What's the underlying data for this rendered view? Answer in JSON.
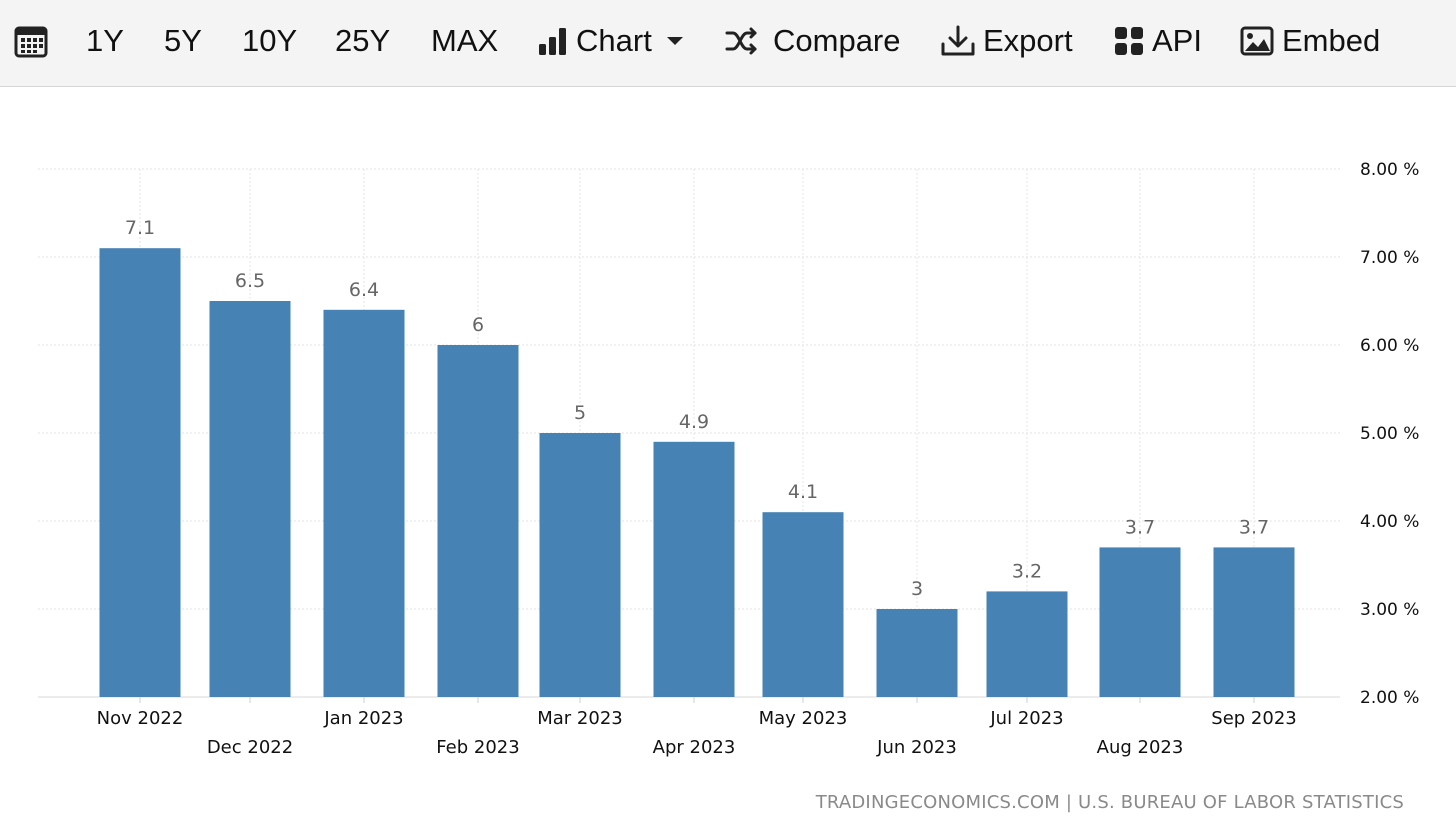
{
  "toolbar": {
    "calendar_icon": "calendar-icon",
    "ranges": [
      "1Y",
      "5Y",
      "10Y",
      "25Y",
      "MAX"
    ],
    "chart_label": "Chart",
    "compare_label": "Compare",
    "export_label": "Export",
    "api_label": "API",
    "embed_label": "Embed"
  },
  "chart_data": {
    "type": "bar",
    "categories": [
      "Nov 2022",
      "Dec 2022",
      "Jan 2023",
      "Feb 2023",
      "Mar 2023",
      "Apr 2023",
      "May 2023",
      "Jun 2023",
      "Jul 2023",
      "Aug 2023",
      "Sep 2023"
    ],
    "values": [
      7.1,
      6.5,
      6.4,
      6,
      5,
      4.9,
      4.1,
      3,
      3.2,
      3.7,
      3.7
    ],
    "data_labels": [
      "7.1",
      "6.5",
      "6.4",
      "6",
      "5",
      "4.9",
      "4.1",
      "3",
      "3.2",
      "3.7",
      "3.7"
    ],
    "ylim": [
      2,
      8
    ],
    "y_ticks": [
      2,
      3,
      4,
      5,
      6,
      7,
      8
    ],
    "y_tick_labels": [
      "2.00 %",
      "3.00 %",
      "4.00 %",
      "5.00 %",
      "6.00 %",
      "7.00 %",
      "8.00 %"
    ],
    "y_axis_side": "right",
    "x_label_rows": "alternating",
    "grid": true,
    "bar_color": "#4682b4",
    "label_color": "#666666",
    "title": "",
    "xlabel": "",
    "ylabel": ""
  },
  "source": "TRADINGECONOMICS.COM | U.S. BUREAU OF LABOR STATISTICS"
}
